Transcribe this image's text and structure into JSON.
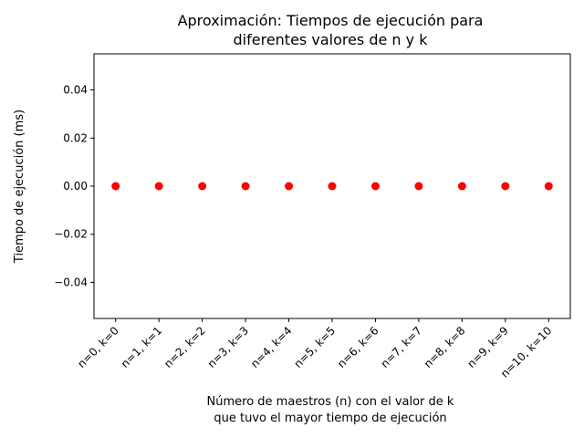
{
  "chart_data": {
    "type": "scatter",
    "title_lines": [
      "Aproximación: Tiempos de ejecución para",
      "diferentes valores de n y k"
    ],
    "xlabel_lines": [
      "Número de maestros (n) con el valor de k",
      "que tuvo el mayor tiempo de ejecución"
    ],
    "ylabel": "Tiempo de ejecución (ms)",
    "categories": [
      "n=0, k=0",
      "n=1, k=1",
      "n=2, k=2",
      "n=3, k=3",
      "n=4, k=4",
      "n=5, k=5",
      "n=6, k=6",
      "n=7, k=7",
      "n=8, k=8",
      "n=9, k=9",
      "n=10, k=10"
    ],
    "values": [
      0,
      0,
      0,
      0,
      0,
      0,
      0,
      0,
      0,
      0,
      0
    ],
    "ylim": [
      -0.055,
      0.055
    ],
    "yticks": [
      -0.04,
      -0.02,
      0.0,
      0.02,
      0.04
    ],
    "ytick_labels": [
      "−0.04",
      "−0.02",
      "0.00",
      "0.02",
      "0.04"
    ],
    "marker_color": "#ff0000",
    "grid": false,
    "legend": "none"
  }
}
